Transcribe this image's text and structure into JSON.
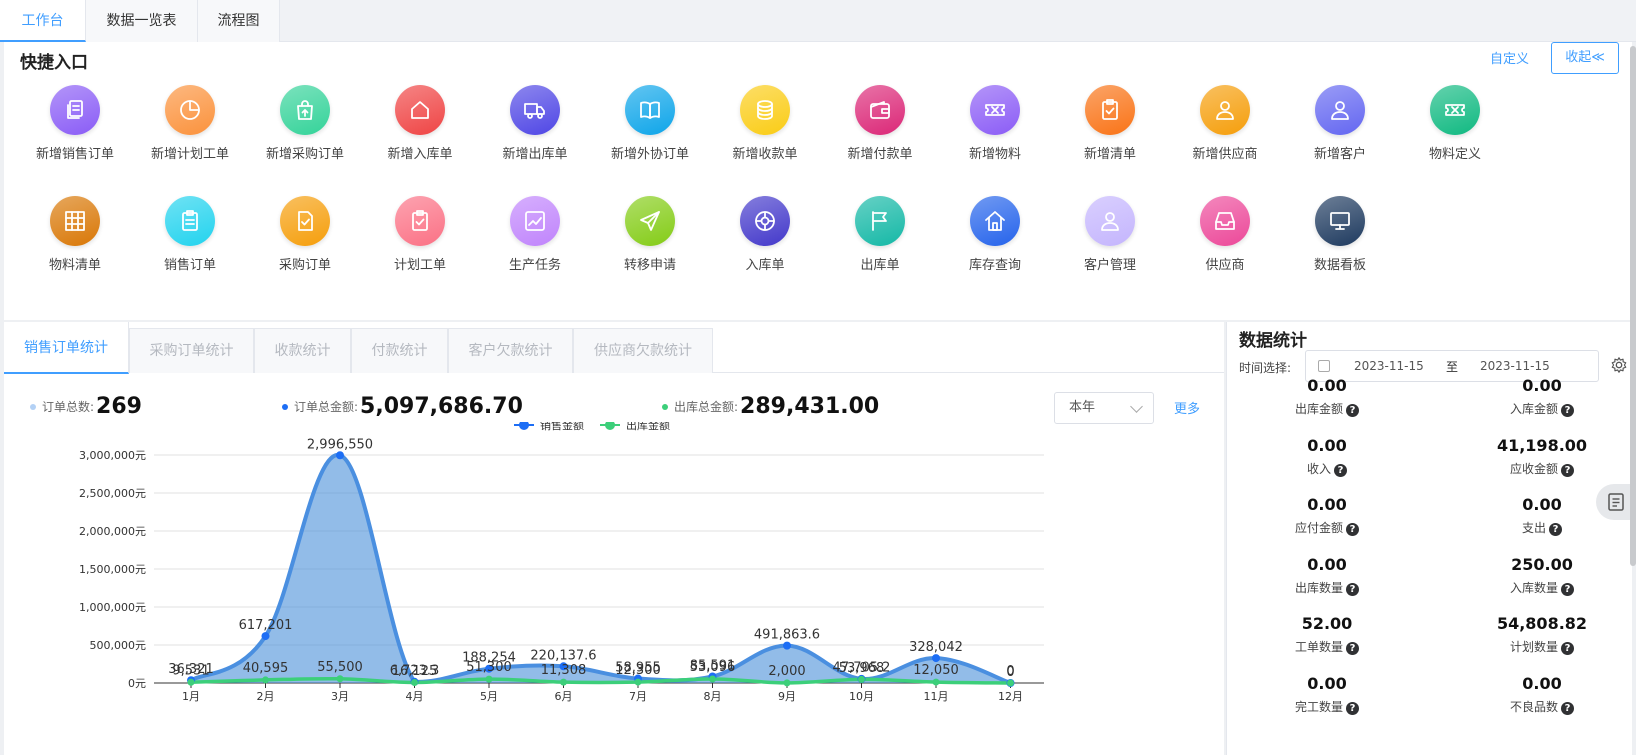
{
  "tabs": [
    "工作台",
    "数据一览表",
    "流程图"
  ],
  "quick": {
    "title": "快捷入口",
    "custom": "自定义",
    "collapse": "收起≪",
    "items": [
      {
        "label": "新增销售订单",
        "icon": "document-copy-icon",
        "color": "#8a5cf6"
      },
      {
        "label": "新增计划工单",
        "icon": "pie-chart-icon",
        "color": "#fb923c"
      },
      {
        "label": "新增采购订单",
        "icon": "shopping-bag-icon",
        "color": "#34d399"
      },
      {
        "label": "新增入库单",
        "icon": "house-icon",
        "color": "#ef4444"
      },
      {
        "label": "新增出库单",
        "icon": "truck-icon",
        "color": "#4f46e5"
      },
      {
        "label": "新增外协订单",
        "icon": "book-icon",
        "color": "#0ea5e9"
      },
      {
        "label": "新增收款单",
        "icon": "coins-icon",
        "color": "#facc15"
      },
      {
        "label": "新增付款单",
        "icon": "wallet-icon",
        "color": "#db2777"
      },
      {
        "label": "新增物料",
        "icon": "ticket-icon",
        "color": "#8b5cf6"
      },
      {
        "label": "新增清单",
        "icon": "clipboard-check-icon",
        "color": "#f97316"
      },
      {
        "label": "新增供应商",
        "icon": "user-icon",
        "color": "#f59e0b"
      },
      {
        "label": "新增客户",
        "icon": "user-icon",
        "color": "#6366f1"
      },
      {
        "label": "物料定义",
        "icon": "ticket-icon",
        "color": "#10b981"
      },
      {
        "label": "物料清单",
        "icon": "grid-icon",
        "color": "#d97706"
      },
      {
        "label": "销售订单",
        "icon": "clipboard-icon",
        "color": "#22d3ee"
      },
      {
        "label": "采购订单",
        "icon": "document-check-icon",
        "color": "#f59e0b"
      },
      {
        "label": "计划工单",
        "icon": "clipboard-check-icon",
        "color": "#fb7185"
      },
      {
        "label": "生产任务",
        "icon": "trend-icon",
        "color": "#c084fc"
      },
      {
        "label": "转移申请",
        "icon": "send-icon",
        "color": "#84cc16"
      },
      {
        "label": "入库单",
        "icon": "aperture-icon",
        "color": "#4338ca"
      },
      {
        "label": "出库单",
        "icon": "flag-icon",
        "color": "#14b8a6"
      },
      {
        "label": "库存查询",
        "icon": "home-icon",
        "color": "#2563eb"
      },
      {
        "label": "客户管理",
        "icon": "user-icon",
        "color": "#c4b5fd"
      },
      {
        "label": "供应商",
        "icon": "inbox-icon",
        "color": "#ec4899"
      },
      {
        "label": "数据看板",
        "icon": "monitor-icon",
        "color": "#1e3a5f"
      }
    ]
  },
  "stats_tabs": [
    "销售订单统计",
    "采购订单统计",
    "收款统计",
    "付款统计",
    "客户欠款统计",
    "供应商欠款统计"
  ],
  "kpis": [
    {
      "label": "订单总数:",
      "value": "269",
      "color": "#b3d1f5"
    },
    {
      "label": "订单总金额:",
      "value": "5,097,686.70",
      "color": "#1d6ef5"
    },
    {
      "label": "出库总金额:",
      "value": "289,431.00",
      "color": "#3ccf7a"
    }
  ],
  "period": "本年",
  "more": "更多",
  "chart_data": {
    "type": "line",
    "categories": [
      "1月",
      "2月",
      "3月",
      "4月",
      "5月",
      "6月",
      "7月",
      "8月",
      "9月",
      "10月",
      "11月",
      "12月"
    ],
    "series": [
      {
        "name": "销售金额",
        "color": "#1d6ef5",
        "values": [
          36321,
          617201,
          2996550,
          16125,
          188254,
          220137.6,
          58955,
          85591,
          491863.6,
          53968,
          328042,
          0
        ],
        "labels": [
          "36,321",
          "617,201",
          "2,996,550",
          "16,125",
          "188,254",
          "220,137.6",
          "58,955",
          "85,591",
          "491,863.6",
          "53,968",
          "328,042",
          "0"
        ]
      },
      {
        "name": "出库金额",
        "color": "#3ccf7a",
        "values": [
          9531,
          40595,
          55500,
          6723.3,
          51300,
          11308,
          12300,
          53096,
          2000,
          47705.2,
          12050,
          0
        ],
        "labels": [
          "9,531",
          "40,595",
          "55,500",
          "6,723.3",
          "51,300",
          "11,308",
          "12,300",
          "53,096",
          "2,000",
          "47,705.2",
          "12,050",
          "0"
        ]
      }
    ],
    "yticks": [
      "0元",
      "500,000元",
      "1,000,000元",
      "1,500,000元",
      "2,000,000元",
      "2,500,000元",
      "3,000,000元"
    ],
    "ylim": [
      0,
      3000000
    ],
    "legend": "top-center",
    "grid": true
  },
  "data_stats": {
    "title": "数据统计",
    "range_label": "时间选择:",
    "start": "2023-11-15",
    "sep": "至",
    "end": "2023-11-15",
    "items": [
      {
        "value": "0.00",
        "label": "出库金额"
      },
      {
        "value": "0.00",
        "label": "入库金额"
      },
      {
        "value": "0.00",
        "label": "收入"
      },
      {
        "value": "41,198.00",
        "label": "应收金额"
      },
      {
        "value": "0.00",
        "label": "应付金额"
      },
      {
        "value": "0.00",
        "label": "支出"
      },
      {
        "value": "0.00",
        "label": "出库数量"
      },
      {
        "value": "250.00",
        "label": "入库数量"
      },
      {
        "value": "52.00",
        "label": "工单数量"
      },
      {
        "value": "54,808.82",
        "label": "计划数量"
      },
      {
        "value": "0.00",
        "label": "完工数量"
      },
      {
        "value": "0.00",
        "label": "不良品数"
      }
    ]
  }
}
